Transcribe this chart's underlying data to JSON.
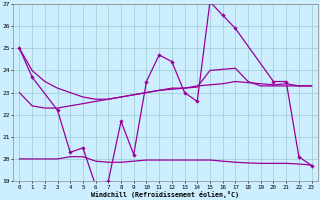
{
  "xlabel": "Windchill (Refroidissement éolien,°C)",
  "background_color": "#cceeff",
  "grid_color": "#99cccc",
  "line_color": "#990099",
  "ylim": [
    19,
    27
  ],
  "xlim": [
    -0.5,
    23.5
  ],
  "yticks": [
    19,
    20,
    21,
    22,
    23,
    24,
    25,
    26,
    27
  ],
  "xticks": [
    0,
    1,
    2,
    3,
    4,
    5,
    6,
    7,
    8,
    9,
    10,
    11,
    12,
    13,
    14,
    15,
    16,
    17,
    18,
    19,
    20,
    21,
    22,
    23
  ],
  "main_x": [
    0,
    1,
    3,
    4,
    5,
    6,
    7,
    8,
    9,
    10,
    11,
    12,
    13,
    14,
    15,
    16,
    17,
    20,
    21,
    22,
    23
  ],
  "main_y": [
    25.0,
    23.7,
    22.2,
    20.3,
    20.5,
    18.8,
    19.0,
    21.7,
    20.2,
    23.5,
    24.7,
    24.4,
    23.0,
    22.6,
    27.1,
    26.5,
    25.9,
    23.5,
    23.5,
    20.1,
    19.7
  ],
  "smooth1_x": [
    0,
    1,
    2,
    3,
    4,
    5,
    6,
    7,
    8,
    9,
    10,
    11,
    12,
    13,
    14,
    15,
    16,
    17,
    18,
    19,
    20,
    21,
    22,
    23
  ],
  "smooth1_y": [
    23.0,
    22.4,
    22.3,
    22.3,
    22.4,
    22.5,
    22.6,
    22.7,
    22.8,
    22.9,
    23.0,
    23.1,
    23.2,
    23.2,
    23.3,
    23.35,
    23.4,
    23.5,
    23.45,
    23.4,
    23.35,
    23.4,
    23.3,
    23.3
  ],
  "smooth2_x": [
    0,
    1,
    2,
    3,
    4,
    5,
    6,
    7,
    8,
    9,
    10,
    11,
    12,
    13,
    14,
    15,
    16,
    17,
    18,
    19,
    20,
    21,
    22,
    23
  ],
  "smooth2_y": [
    25.0,
    24.0,
    23.5,
    23.2,
    23.0,
    22.8,
    22.7,
    22.7,
    22.8,
    22.9,
    23.0,
    23.1,
    23.15,
    23.2,
    23.25,
    24.0,
    24.05,
    24.1,
    23.5,
    23.3,
    23.3,
    23.3,
    23.3,
    23.3
  ],
  "flat_x": [
    0,
    1,
    2,
    3,
    4,
    5,
    6,
    7,
    8,
    9,
    10,
    11,
    12,
    13,
    14,
    15,
    16,
    17,
    18,
    19,
    20,
    21,
    22,
    23
  ],
  "flat_y": [
    20.0,
    20.0,
    20.0,
    20.0,
    20.1,
    20.1,
    19.9,
    19.85,
    19.85,
    19.9,
    19.95,
    19.95,
    19.95,
    19.95,
    19.95,
    19.95,
    19.9,
    19.85,
    19.82,
    19.8,
    19.8,
    19.8,
    19.77,
    19.72
  ]
}
